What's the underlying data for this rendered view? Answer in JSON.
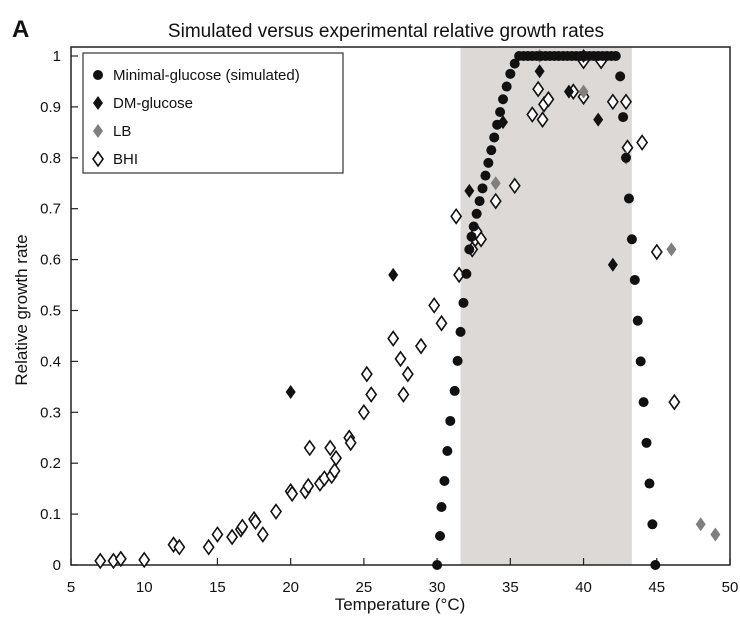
{
  "panel_label": "A",
  "chart_data": {
    "type": "scatter",
    "title": "Simulated versus experimental relative growth rates",
    "xlabel": "Temperature (°C)",
    "ylabel": "Relative growth rate",
    "xlim": [
      5,
      50
    ],
    "ylim": [
      0,
      1
    ],
    "xticks": [
      5,
      10,
      15,
      20,
      25,
      30,
      35,
      40,
      45,
      50
    ],
    "yticks": [
      0,
      0.1,
      0.2,
      0.3,
      0.4,
      0.5,
      0.6,
      0.7,
      0.8,
      0.9,
      1
    ],
    "xtick_labels": [
      "5",
      "10",
      "15",
      "20",
      "25",
      "30",
      "35",
      "40",
      "45",
      "50"
    ],
    "ytick_labels": [
      "0",
      "0.1",
      "0.2",
      "0.3",
      "0.4",
      "0.5",
      "0.6",
      "0.7",
      "0.8",
      "0.9",
      "1"
    ],
    "grid": false,
    "legend_position": "top-left",
    "shaded_region": {
      "x_start": 31.6,
      "x_end": 43.3,
      "color": "#dcd9d6"
    },
    "series": [
      {
        "name": "Minimal-glucose (simulated)",
        "marker": "circle",
        "color": "#111111",
        "points": [
          [
            30.0,
            0.0
          ],
          [
            30.2,
            0.057
          ],
          [
            30.3,
            0.114
          ],
          [
            30.5,
            0.165
          ],
          [
            30.7,
            0.224
          ],
          [
            30.9,
            0.283
          ],
          [
            31.2,
            0.342
          ],
          [
            31.4,
            0.401
          ],
          [
            31.6,
            0.458
          ],
          [
            31.8,
            0.515
          ],
          [
            32.0,
            0.572
          ],
          [
            32.2,
            0.62
          ],
          [
            32.35,
            0.645
          ],
          [
            32.5,
            0.665
          ],
          [
            32.7,
            0.69
          ],
          [
            32.9,
            0.715
          ],
          [
            33.1,
            0.74
          ],
          [
            33.3,
            0.765
          ],
          [
            33.5,
            0.79
          ],
          [
            33.7,
            0.815
          ],
          [
            33.9,
            0.84
          ],
          [
            34.1,
            0.865
          ],
          [
            34.3,
            0.89
          ],
          [
            34.5,
            0.915
          ],
          [
            34.75,
            0.94
          ],
          [
            35.0,
            0.965
          ],
          [
            35.3,
            0.985
          ],
          [
            35.6,
            1.0
          ],
          [
            35.9,
            1.0
          ],
          [
            36.2,
            1.0
          ],
          [
            36.5,
            1.0
          ],
          [
            36.8,
            1.0
          ],
          [
            37.1,
            1.0
          ],
          [
            37.4,
            1.0
          ],
          [
            37.7,
            1.0
          ],
          [
            38.0,
            1.0
          ],
          [
            38.3,
            1.0
          ],
          [
            38.6,
            1.0
          ],
          [
            38.9,
            1.0
          ],
          [
            39.2,
            1.0
          ],
          [
            39.5,
            1.0
          ],
          [
            39.8,
            1.0
          ],
          [
            40.1,
            1.0
          ],
          [
            40.4,
            1.0
          ],
          [
            40.7,
            1.0
          ],
          [
            41.0,
            1.0
          ],
          [
            41.3,
            1.0
          ],
          [
            41.6,
            1.0
          ],
          [
            41.9,
            1.0
          ],
          [
            42.2,
            1.0
          ],
          [
            42.5,
            0.96
          ],
          [
            42.7,
            0.88
          ],
          [
            42.9,
            0.8
          ],
          [
            43.1,
            0.72
          ],
          [
            43.3,
            0.64
          ],
          [
            43.5,
            0.56
          ],
          [
            43.7,
            0.48
          ],
          [
            43.9,
            0.4
          ],
          [
            44.1,
            0.32
          ],
          [
            44.3,
            0.24
          ],
          [
            44.5,
            0.16
          ],
          [
            44.7,
            0.08
          ],
          [
            44.9,
            0.0
          ]
        ]
      },
      {
        "name": "DM-glucose",
        "marker": "diamond-filled",
        "color": "#111111",
        "points": [
          [
            20.0,
            0.34
          ],
          [
            27.0,
            0.57
          ],
          [
            32.2,
            0.735
          ],
          [
            34.5,
            0.87
          ],
          [
            37.0,
            0.97
          ],
          [
            39.0,
            0.93
          ],
          [
            41.0,
            0.875
          ],
          [
            42.0,
            0.59
          ],
          [
            40.0,
            1.0
          ]
        ]
      },
      {
        "name": "LB",
        "marker": "diamond-filled",
        "color": "#7f7f7f",
        "points": [
          [
            34.0,
            0.75
          ],
          [
            37.0,
            1.0
          ],
          [
            40.0,
            0.93
          ],
          [
            42.9,
            0.8
          ],
          [
            46.0,
            0.62
          ],
          [
            48.0,
            0.08
          ],
          [
            49.0,
            0.06
          ]
        ]
      },
      {
        "name": "BHI",
        "marker": "diamond-open",
        "color": "#111111",
        "points": [
          [
            7.0,
            0.008
          ],
          [
            7.9,
            0.008
          ],
          [
            8.4,
            0.012
          ],
          [
            10.0,
            0.01
          ],
          [
            12.0,
            0.04
          ],
          [
            12.4,
            0.035
          ],
          [
            14.4,
            0.035
          ],
          [
            15.0,
            0.06
          ],
          [
            16.0,
            0.055
          ],
          [
            16.6,
            0.07
          ],
          [
            16.7,
            0.075
          ],
          [
            17.5,
            0.09
          ],
          [
            17.6,
            0.085
          ],
          [
            18.1,
            0.06
          ],
          [
            19.0,
            0.105
          ],
          [
            20.0,
            0.145
          ],
          [
            20.1,
            0.14
          ],
          [
            21.0,
            0.145
          ],
          [
            21.2,
            0.155
          ],
          [
            21.3,
            0.23
          ],
          [
            22.0,
            0.16
          ],
          [
            22.3,
            0.17
          ],
          [
            22.7,
            0.23
          ],
          [
            22.8,
            0.175
          ],
          [
            23.0,
            0.185
          ],
          [
            23.1,
            0.21
          ],
          [
            24.0,
            0.25
          ],
          [
            24.1,
            0.24
          ],
          [
            25.0,
            0.3
          ],
          [
            25.2,
            0.375
          ],
          [
            25.5,
            0.335
          ],
          [
            27.0,
            0.445
          ],
          [
            27.5,
            0.405
          ],
          [
            27.7,
            0.335
          ],
          [
            28.0,
            0.375
          ],
          [
            28.9,
            0.43
          ],
          [
            29.8,
            0.51
          ],
          [
            30.3,
            0.475
          ],
          [
            31.3,
            0.685
          ],
          [
            31.5,
            0.57
          ],
          [
            32.4,
            0.62
          ],
          [
            32.6,
            0.64
          ],
          [
            32.7,
            0.655
          ],
          [
            33.0,
            0.64
          ],
          [
            34.0,
            0.715
          ],
          [
            35.3,
            0.745
          ],
          [
            36.5,
            0.885
          ],
          [
            36.9,
            0.935
          ],
          [
            37.2,
            0.875
          ],
          [
            37.3,
            0.905
          ],
          [
            37.6,
            0.915
          ],
          [
            39.3,
            0.93
          ],
          [
            40.0,
            0.92
          ],
          [
            41.2,
            0.99
          ],
          [
            42.0,
            0.91
          ],
          [
            42.9,
            0.91
          ],
          [
            43.0,
            0.82
          ],
          [
            44.0,
            0.83
          ],
          [
            45.0,
            0.615
          ],
          [
            46.2,
            0.32
          ],
          [
            40.0,
            0.99
          ]
        ]
      }
    ]
  }
}
